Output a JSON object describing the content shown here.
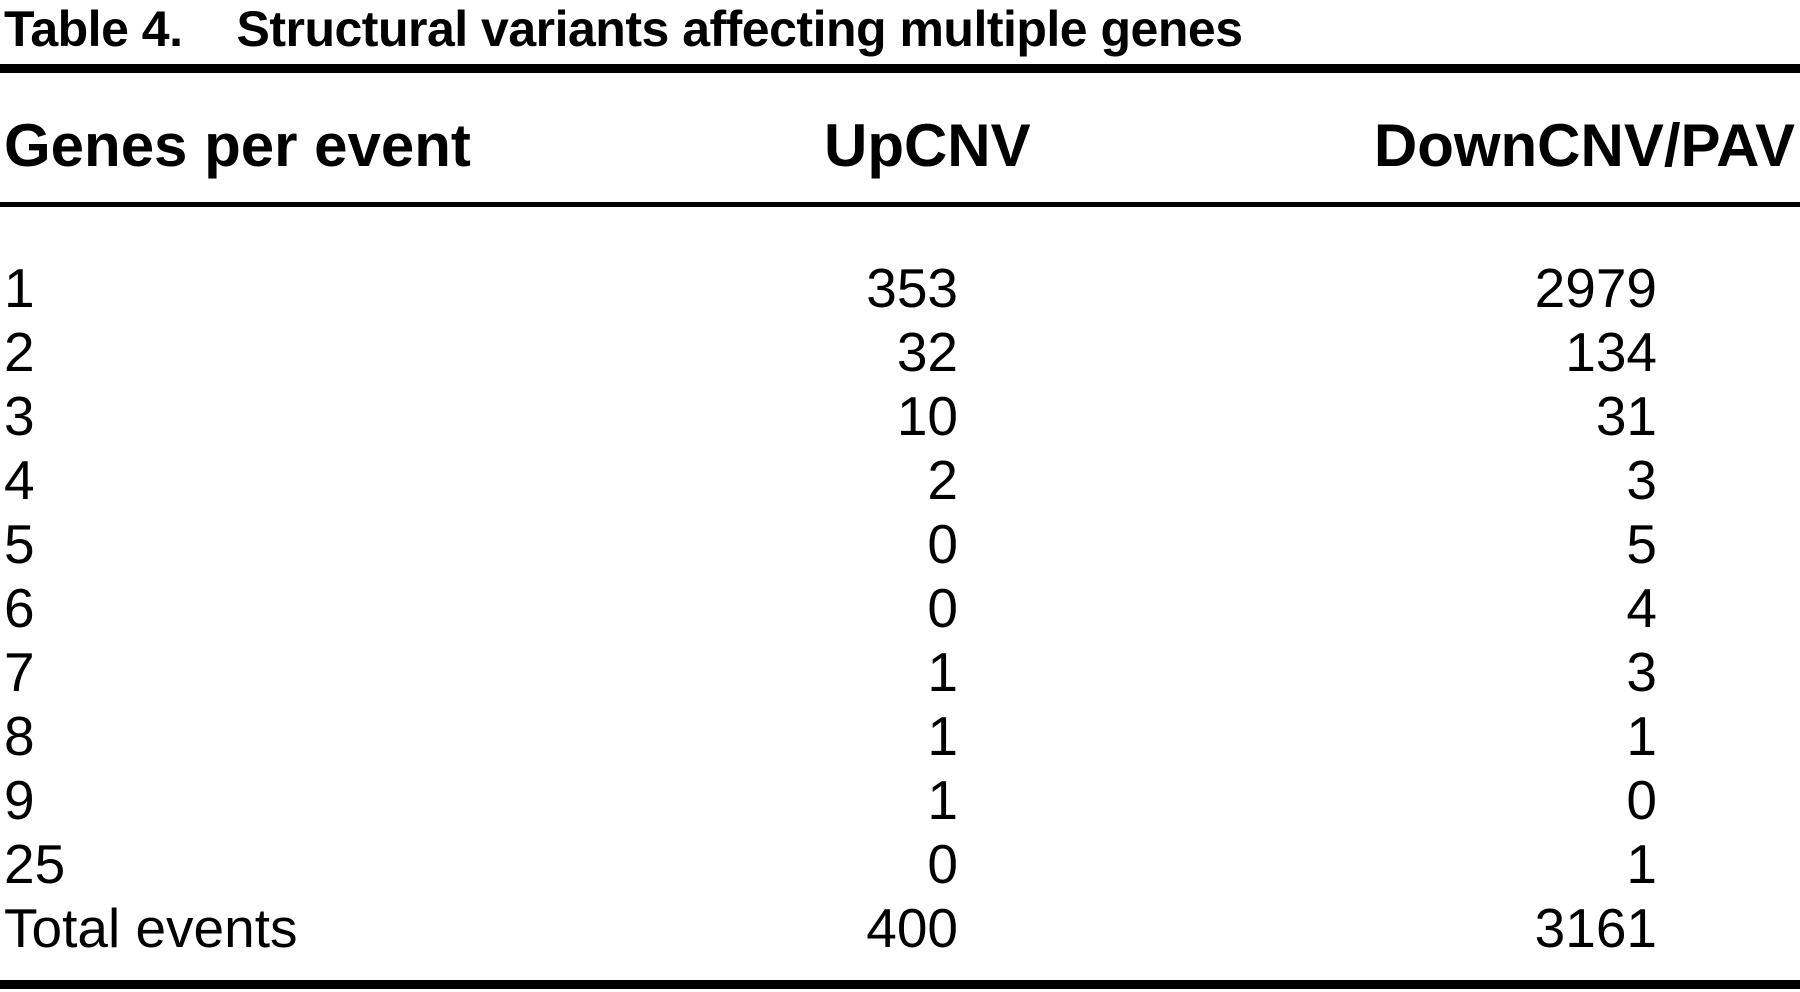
{
  "colors": {
    "background": "#ffffff",
    "text": "#000000",
    "rule": "#000000"
  },
  "caption": {
    "label": "Table 4.",
    "text": "Structural variants affecting multiple genes"
  },
  "table": {
    "columns": [
      "Genes per event",
      "UpCNV",
      "DownCNV/PAV"
    ],
    "rows": [
      {
        "genes": "1",
        "upcnv": "353",
        "downcnv": "2979"
      },
      {
        "genes": "2",
        "upcnv": "32",
        "downcnv": "134"
      },
      {
        "genes": "3",
        "upcnv": "10",
        "downcnv": "31"
      },
      {
        "genes": "4",
        "upcnv": "2",
        "downcnv": "3"
      },
      {
        "genes": "5",
        "upcnv": "0",
        "downcnv": "5"
      },
      {
        "genes": "6",
        "upcnv": "0",
        "downcnv": "4"
      },
      {
        "genes": "7",
        "upcnv": "1",
        "downcnv": "3"
      },
      {
        "genes": "8",
        "upcnv": "1",
        "downcnv": "1"
      },
      {
        "genes": "9",
        "upcnv": "1",
        "downcnv": "0"
      },
      {
        "genes": "25",
        "upcnv": "0",
        "downcnv": "1"
      },
      {
        "genes": "Total events",
        "upcnv": "400",
        "downcnv": "3161"
      }
    ]
  }
}
